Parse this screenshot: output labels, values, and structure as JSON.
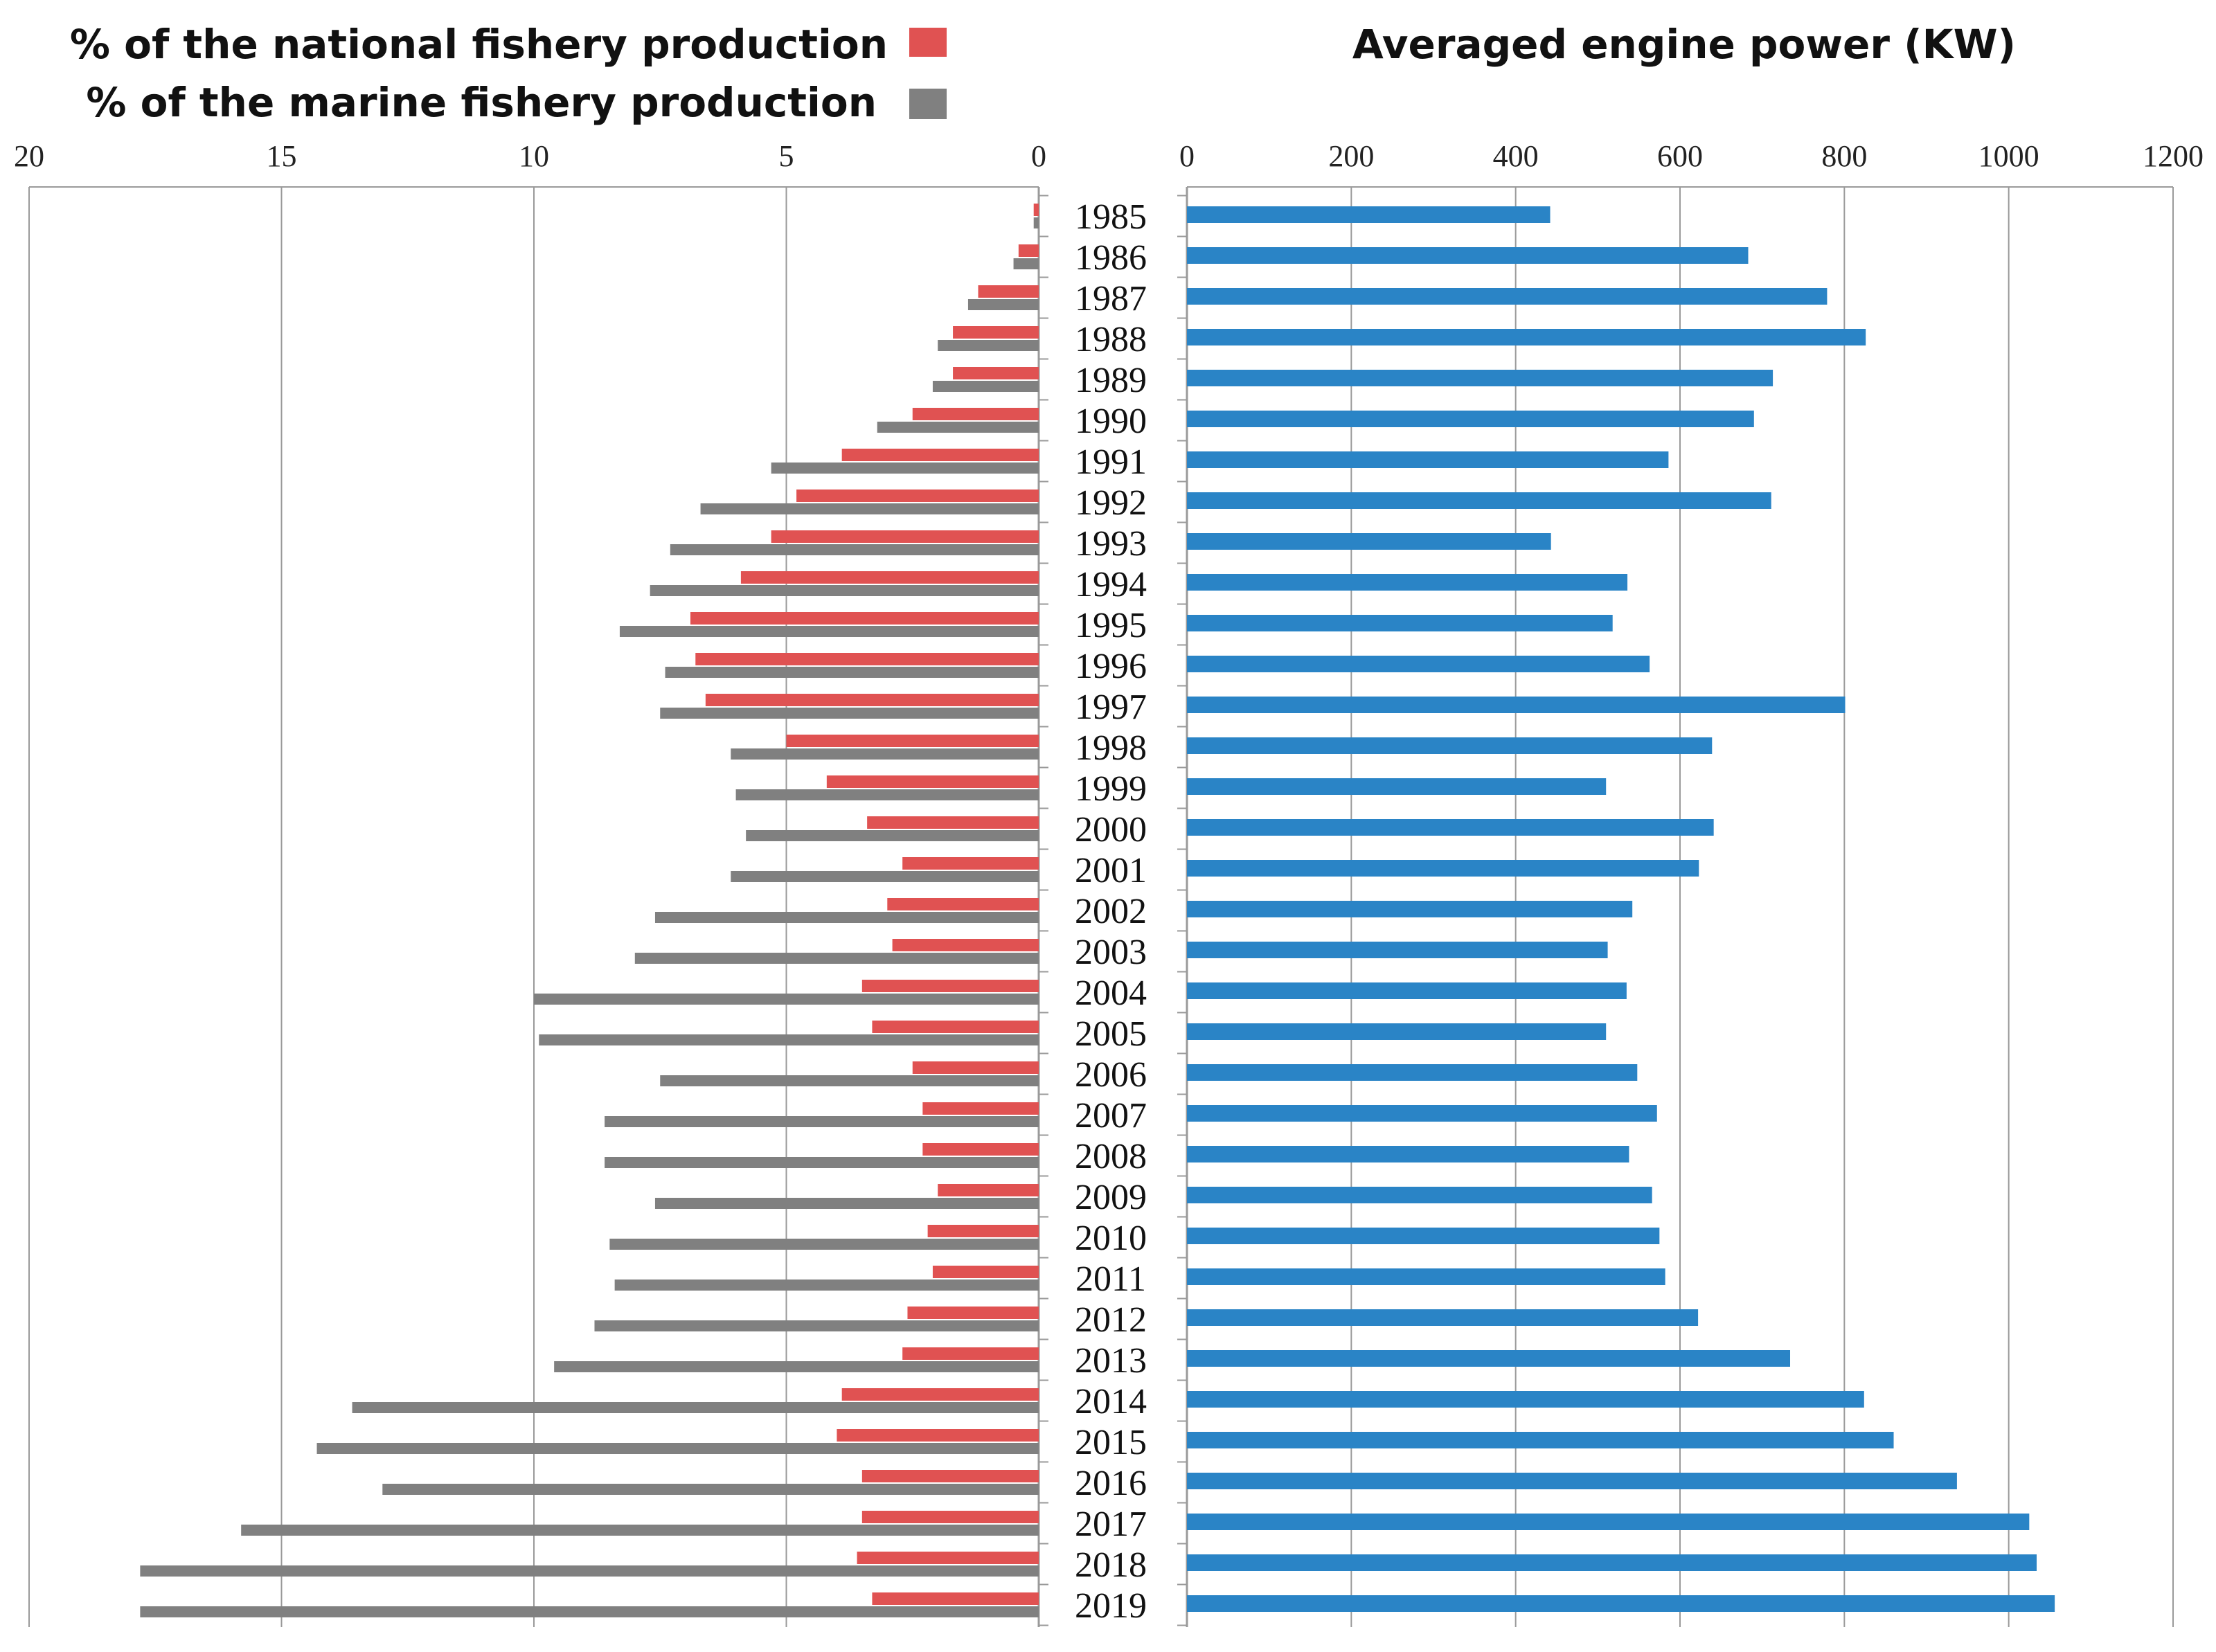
{
  "legend": {
    "national_label": "% of the national fishery production",
    "marine_label": "% of the marine fishery production",
    "national_color": "#E05252",
    "marine_color": "#808080"
  },
  "chart_data": [
    {
      "id": "fishery-share",
      "type": "bar",
      "orientation": "horizontal",
      "x_reversed": true,
      "title": "",
      "xlabel": "",
      "ylabel": "",
      "xlim": [
        0,
        20
      ],
      "x_ticks": [
        "0",
        "5",
        "10",
        "15",
        "20"
      ],
      "categories": [
        "1985",
        "1986",
        "1987",
        "1988",
        "1989",
        "1990",
        "1991",
        "1992",
        "1993",
        "1994",
        "1995",
        "1996",
        "1997",
        "1998",
        "1999",
        "2000",
        "2001",
        "2002",
        "2003",
        "2004",
        "2005",
        "2006",
        "2007",
        "2008",
        "2009",
        "2010",
        "2011",
        "2012",
        "2013",
        "2014",
        "2015",
        "2016",
        "2017",
        "2018",
        "2019"
      ],
      "series": [
        {
          "name": "% of the national fishery production",
          "color": "#E05252",
          "values": [
            0.1,
            0.4,
            1.2,
            1.7,
            1.7,
            2.5,
            3.9,
            4.8,
            5.3,
            5.9,
            6.9,
            6.8,
            6.6,
            5.0,
            4.2,
            3.4,
            2.7,
            3.0,
            2.9,
            3.5,
            3.3,
            2.5,
            2.3,
            2.3,
            2.0,
            2.2,
            2.1,
            2.6,
            2.7,
            3.9,
            4.0,
            3.5,
            3.5,
            3.6,
            3.3
          ]
        },
        {
          "name": "% of the marine fishery production",
          "color": "#808080",
          "values": [
            0.1,
            0.5,
            1.4,
            2.0,
            2.1,
            3.2,
            5.3,
            6.7,
            7.3,
            7.7,
            8.3,
            7.4,
            7.5,
            6.1,
            6.0,
            5.8,
            6.1,
            7.6,
            8.0,
            10.0,
            9.9,
            7.5,
            8.6,
            8.6,
            7.6,
            8.5,
            8.4,
            8.8,
            9.6,
            13.6,
            14.3,
            13.0,
            15.8,
            17.8,
            17.8
          ]
        }
      ]
    },
    {
      "id": "engine-power",
      "type": "bar",
      "orientation": "horizontal",
      "title": "Averaged engine power (KW)",
      "xlabel": "",
      "ylabel": "",
      "xlim": [
        0,
        1200
      ],
      "x_ticks": [
        "0",
        "200",
        "400",
        "600",
        "800",
        "1000",
        "1200"
      ],
      "categories": [
        "1985",
        "1986",
        "1987",
        "1988",
        "1989",
        "1990",
        "1991",
        "1992",
        "1993",
        "1994",
        "1995",
        "1996",
        "1997",
        "1998",
        "1999",
        "2000",
        "2001",
        "2002",
        "2003",
        "2004",
        "2005",
        "2006",
        "2007",
        "2008",
        "2009",
        "2010",
        "2011",
        "2012",
        "2013",
        "2014",
        "2015",
        "2016",
        "2017",
        "2018",
        "2019"
      ],
      "series": [
        {
          "name": "Averaged engine power (KW)",
          "color": "#2A84C6",
          "values": [
            442,
            683,
            779,
            826,
            713,
            690,
            586,
            711,
            443,
            536,
            518,
            563,
            801,
            639,
            510,
            641,
            623,
            542,
            512,
            535,
            510,
            548,
            572,
            538,
            566,
            575,
            582,
            622,
            734,
            824,
            860,
            937,
            1025,
            1034,
            1056
          ]
        }
      ]
    }
  ]
}
